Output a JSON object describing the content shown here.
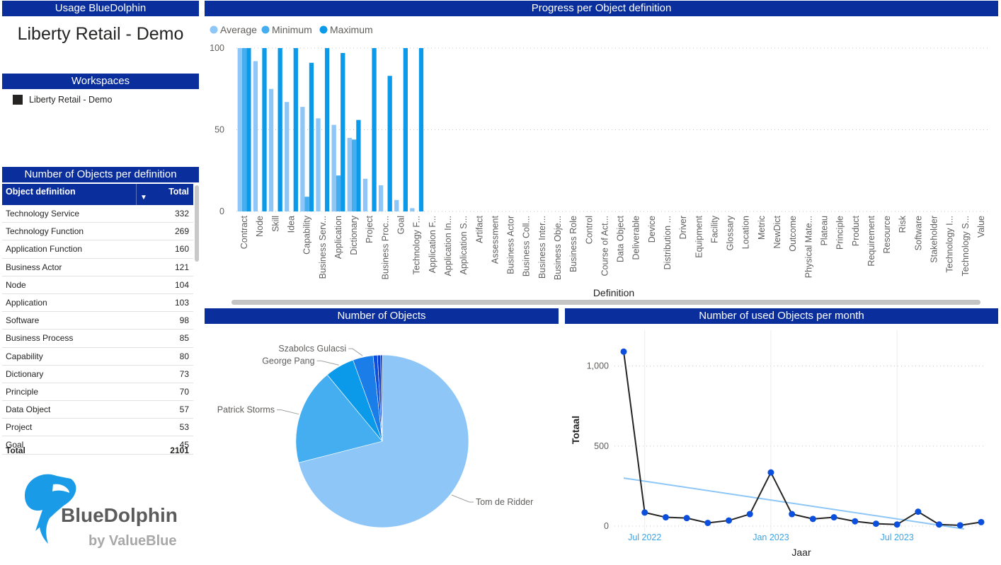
{
  "headers": {
    "usage": "Usage BlueDolphin",
    "workspaces": "Workspaces",
    "objects_per_definition": "Number of Objects per definition",
    "progress": "Progress per Object definition",
    "number_of_objects": "Number of Objects",
    "used_per_month": "Number of used Objects per month"
  },
  "main_title": "Liberty Retail - Demo",
  "workspace": {
    "label": "Liberty Retail - Demo"
  },
  "table": {
    "col1": "Object definition",
    "col2": "Total",
    "rows": [
      {
        "name": "Technology Service",
        "total": "332"
      },
      {
        "name": "Technology Function",
        "total": "269"
      },
      {
        "name": "Application Function",
        "total": "160"
      },
      {
        "name": "Business Actor",
        "total": "121"
      },
      {
        "name": "Node",
        "total": "104"
      },
      {
        "name": "Application",
        "total": "103"
      },
      {
        "name": "Software",
        "total": "98"
      },
      {
        "name": "Business Process",
        "total": "85"
      },
      {
        "name": "Capability",
        "total": "80"
      },
      {
        "name": "Dictionary",
        "total": "73"
      },
      {
        "name": "Principle",
        "total": "70"
      },
      {
        "name": "Data Object",
        "total": "57"
      },
      {
        "name": "Project",
        "total": "53"
      },
      {
        "name": "Goal",
        "total": "45"
      }
    ],
    "total_label": "Total",
    "total_value": "2101"
  },
  "logo": {
    "name": "BlueDolphin",
    "by": "by ValueBlue"
  },
  "colors": {
    "header": "#0a2f9c",
    "average": "#8dc6f7",
    "minimum": "#44aef0",
    "maximum": "#0b9ae9",
    "line": "#252423",
    "marker": "#0b4fdc",
    "trend": "#8dc6f7"
  },
  "chart_data": [
    {
      "type": "bar",
      "xlabel": "Definition",
      "ylabel": "",
      "ylim": [
        0,
        100
      ],
      "yticks": [
        0,
        50,
        100
      ],
      "legend": "top-left",
      "series_names": [
        "Average",
        "Minimum",
        "Maximum"
      ],
      "categories": [
        "Contract",
        "Node",
        "Skill",
        "Idea",
        "Capability",
        "Business Serv...",
        "Application",
        "Dictionary",
        "Project",
        "Business Proc...",
        "Goal",
        "Technology F...",
        "Application F...",
        "Application In...",
        "Application S...",
        "Artifact",
        "Assessment",
        "Business Actor",
        "Business Coll...",
        "Business Inter...",
        "Business Obje...",
        "Business Role",
        "Control",
        "Course of Act...",
        "Data Object",
        "Deliverable",
        "Device",
        "Distribution ...",
        "Driver",
        "Equipment",
        "Facility",
        "Glossary",
        "Location",
        "Metric",
        "NewDict",
        "Outcome",
        "Physical Mate...",
        "Plateau",
        "Principle",
        "Product",
        "Requirement",
        "Resource",
        "Risk",
        "Software",
        "Stakeholder",
        "Technology I...",
        "Technology S...",
        "Value"
      ],
      "average": [
        100,
        92,
        75,
        67,
        64,
        57,
        53,
        45,
        20,
        16,
        7,
        2,
        0,
        0,
        0,
        0,
        0,
        0,
        0,
        0,
        0,
        0,
        0,
        0,
        0,
        0,
        0,
        0,
        0,
        0,
        0,
        0,
        0,
        0,
        0,
        0,
        0,
        0,
        0,
        0,
        0,
        0,
        0,
        0,
        0,
        0,
        0,
        0
      ],
      "minimum": [
        100,
        0,
        0,
        0,
        9,
        0,
        22,
        44,
        0,
        0,
        0,
        0,
        0,
        0,
        0,
        0,
        0,
        0,
        0,
        0,
        0,
        0,
        0,
        0,
        0,
        0,
        0,
        0,
        0,
        0,
        0,
        0,
        0,
        0,
        0,
        0,
        0,
        0,
        0,
        0,
        0,
        0,
        0,
        0,
        0,
        0,
        0,
        0
      ],
      "maximum": [
        100,
        100,
        100,
        100,
        91,
        100,
        97,
        56,
        100,
        83,
        100,
        100,
        0,
        0,
        0,
        0,
        0,
        0,
        0,
        0,
        0,
        0,
        0,
        0,
        0,
        0,
        0,
        0,
        0,
        0,
        0,
        0,
        0,
        0,
        0,
        0,
        0,
        0,
        0,
        0,
        0,
        0,
        0,
        0,
        0,
        0,
        0,
        0
      ]
    },
    {
      "type": "pie",
      "slices": [
        {
          "label": "Tom de Ridder",
          "value": 71,
          "color": "#8dc6f7"
        },
        {
          "label": "Patrick Storms",
          "value": 18,
          "color": "#44aef0"
        },
        {
          "label": "George Pang",
          "value": 5.5,
          "color": "#0b9ae9"
        },
        {
          "label": "Szabolcs Gulacsi",
          "value": 3.8,
          "color": "#1a7de8"
        },
        {
          "label": "",
          "value": 0.8,
          "color": "#0b4fdc"
        },
        {
          "label": "",
          "value": 0.6,
          "color": "#0a3fcf"
        },
        {
          "label": "",
          "value": 0.3,
          "color": "#0a2f9c"
        }
      ]
    },
    {
      "type": "line",
      "xlabel": "Jaar",
      "ylabel": "Totaal",
      "ylim": [
        0,
        1100
      ],
      "yticks": [
        {
          "v": 0,
          "label": "0"
        },
        {
          "v": 500,
          "label": "500"
        },
        {
          "v": 1000,
          "label": "1,000"
        }
      ],
      "xticks": [
        {
          "i": 1,
          "label": "Jul 2022"
        },
        {
          "i": 7,
          "label": "Jan 2023"
        },
        {
          "i": 13,
          "label": "Jul 2023"
        }
      ],
      "x": [
        "Jun 2022",
        "Jul 2022",
        "Aug 2022",
        "Sep 2022",
        "Oct 2022",
        "Nov 2022",
        "Dec 2022",
        "Jan 2023",
        "Feb 2023",
        "Mar 2023",
        "Apr 2023",
        "May 2023",
        "Jun 2023",
        "Jul 2023",
        "Aug 2023",
        "Sep 2023",
        "Oct 2023",
        "Nov 2023"
      ],
      "values": [
        1090,
        85,
        55,
        50,
        20,
        35,
        75,
        335,
        75,
        45,
        55,
        30,
        15,
        10,
        90,
        10,
        5,
        25
      ],
      "trend": [
        300,
        -15
      ]
    }
  ]
}
